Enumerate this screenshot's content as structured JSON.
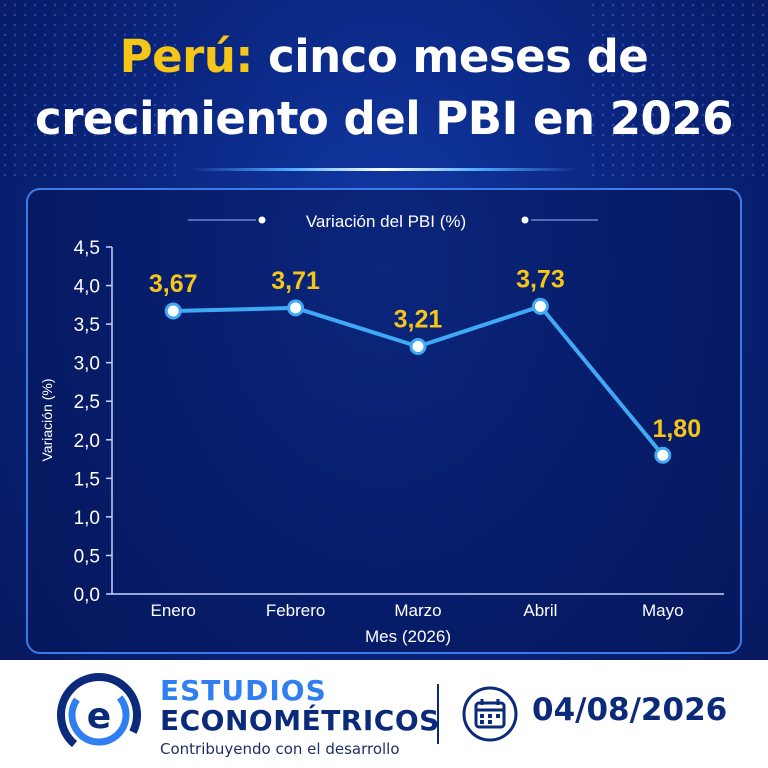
{
  "title": {
    "highlight": "Perú:",
    "line1_rest": " cinco meses de",
    "line2": "crecimiento del PBI en 2026"
  },
  "chart_data": {
    "type": "line",
    "title": "Variación del PBI (%)",
    "xlabel": "Mes (2026)",
    "ylabel": "Variación (%)",
    "categories": [
      "Enero",
      "Febrero",
      "Marzo",
      "Abril",
      "Mayo"
    ],
    "values": [
      3.67,
      3.71,
      3.21,
      3.73,
      1.8
    ],
    "data_labels": [
      "3,67",
      "3,71",
      "3,21",
      "3,73",
      "1,80"
    ],
    "ylim": [
      0,
      4.5
    ],
    "yticks": [
      "0,0",
      "0,5",
      "1,0",
      "1,5",
      "2,0",
      "2,5",
      "3,0",
      "3,5",
      "4,0",
      "4,5"
    ],
    "line_color": "#3fa9f5",
    "label_color": "#f5c518",
    "grid": false,
    "legend": "none"
  },
  "footer": {
    "brand_line1": "ESTUDIOS",
    "brand_line2": "ECONOMÉTRICOS",
    "tagline": "Contribuyendo con el desarrollo",
    "logo_icon": "e-logo-icon",
    "calendar_icon": "calendar-icon",
    "date": "04/08/2026"
  },
  "colors": {
    "accent": "#f5c518",
    "brand_light": "#2f7ff2",
    "brand_dark": "#0b2a7a",
    "background": "#0a2680"
  }
}
